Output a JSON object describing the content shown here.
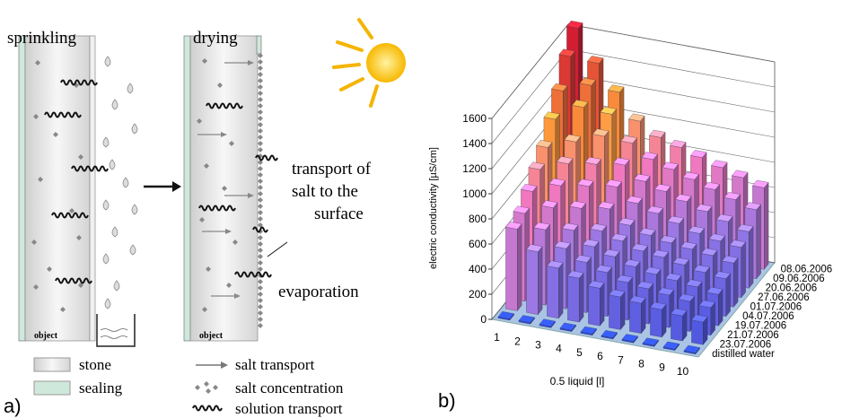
{
  "panel_a": {
    "label": "a)",
    "sprinkling": {
      "title": "sprinkling",
      "object": "object"
    },
    "drying": {
      "title": "drying",
      "object": "object",
      "annotation": [
        "transport of",
        "salt to the",
        "surface"
      ],
      "evaporation": "evaporation"
    },
    "legend": [
      "stone",
      "sealing",
      "salt transport",
      "salt concentration",
      "solution transport"
    ]
  },
  "panel_b_label": "b)",
  "chart_data": {
    "type": "bar3d",
    "y_label": "electric conductivity [µS/cm]",
    "x_label": "0.5 liquid [l]",
    "categories": [
      1,
      2,
      3,
      4,
      5,
      6,
      7,
      8,
      9,
      10
    ],
    "series": [
      {
        "name": "08.06.2006",
        "values": [
          1650,
          1400,
          1200,
          1000,
          900,
          850,
          800,
          750,
          700,
          650
        ]
      },
      {
        "name": "09.06.2006",
        "values": [
          1500,
          1300,
          1100,
          900,
          800,
          750,
          700,
          650,
          600,
          550
        ]
      },
      {
        "name": "20.06.2006",
        "values": [
          1300,
          1200,
          1000,
          800,
          700,
          650,
          600,
          550,
          500,
          450
        ]
      },
      {
        "name": "27.06.2006",
        "values": [
          1150,
          1000,
          850,
          700,
          600,
          550,
          500,
          450,
          420,
          400
        ]
      },
      {
        "name": "01.07.2006",
        "values": [
          1000,
          900,
          750,
          600,
          500,
          450,
          420,
          400,
          380,
          350
        ]
      },
      {
        "name": "04.07.2006",
        "values": [
          900,
          800,
          650,
          500,
          450,
          400,
          380,
          350,
          320,
          300
        ]
      },
      {
        "name": "19.07.2006",
        "values": [
          800,
          700,
          550,
          450,
          400,
          350,
          320,
          300,
          280,
          250
        ]
      },
      {
        "name": "21.07.2006",
        "values": [
          700,
          600,
          480,
          400,
          350,
          300,
          280,
          260,
          240,
          220
        ]
      },
      {
        "name": "23.07.2006",
        "values": [
          650,
          500,
          400,
          350,
          300,
          260,
          240,
          220,
          200,
          180
        ]
      },
      {
        "name": "distilled water",
        "values": [
          10,
          10,
          10,
          10,
          10,
          10,
          10,
          10,
          10,
          10
        ]
      }
    ],
    "ylim": [
      0,
      1600
    ],
    "yticks": [
      0,
      200,
      400,
      600,
      800,
      1000,
      1200,
      1400,
      1600
    ],
    "grid": true
  }
}
